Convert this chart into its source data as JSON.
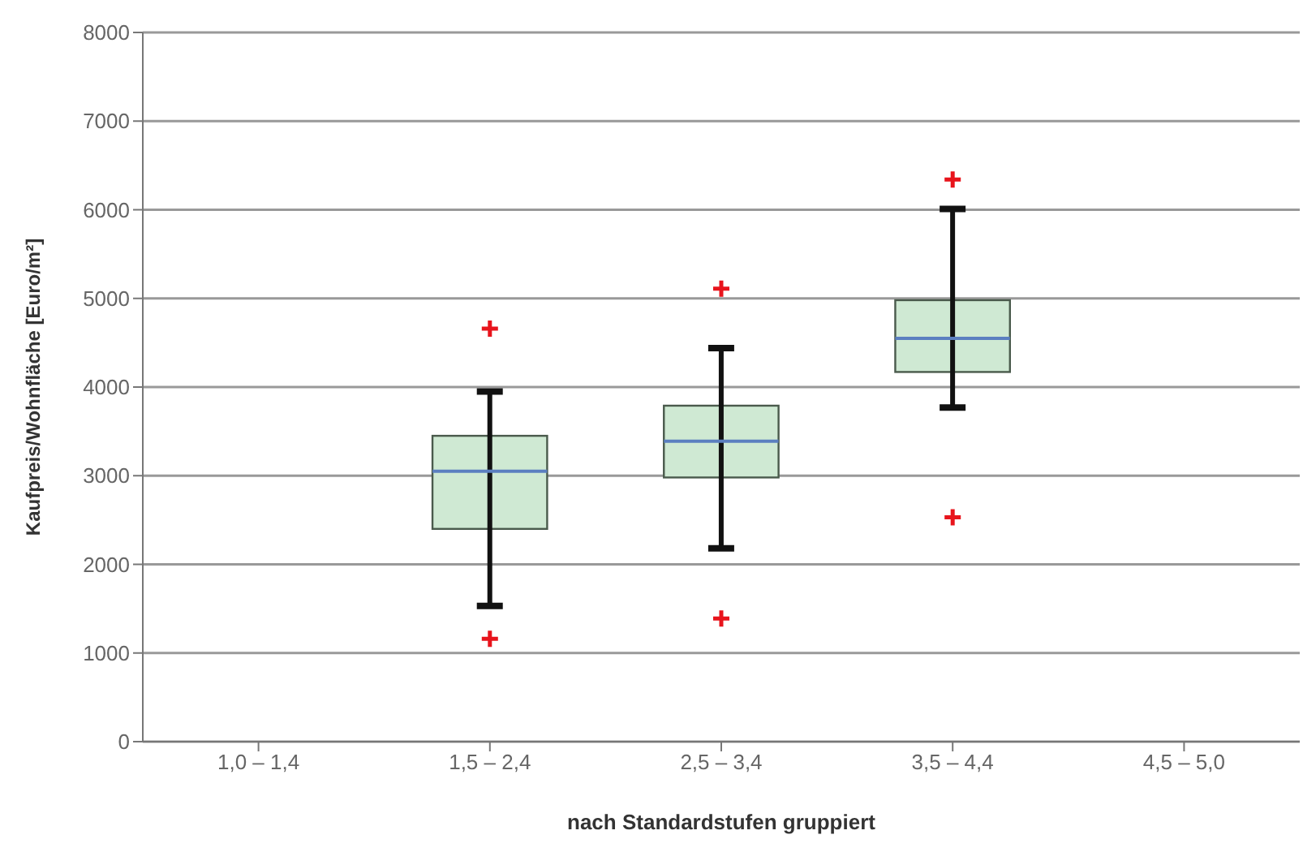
{
  "chart_data": {
    "type": "box",
    "xlabel": "nach Standardstufen gruppiert",
    "ylabel": "Kaufpreis/Wohnfläche [Euro/m²]",
    "categories": [
      "1,0 – 1,4",
      "1,5 – 2,4",
      "2,5 – 3,4",
      "3,5 – 4,4",
      "4,5 – 5,0"
    ],
    "series": [
      {
        "color": "#cfe9d3",
        "boxes": [
          null,
          {
            "low": 1530,
            "q1": 2400,
            "median": 3050,
            "q3": 3450,
            "high": 3950,
            "outliers": [
              4660,
              1160
            ]
          },
          {
            "low": 2180,
            "q1": 2980,
            "median": 3390,
            "q3": 3790,
            "high": 4440,
            "outliers": [
              5110,
              1390
            ]
          },
          {
            "low": 3770,
            "q1": 4170,
            "median": 4550,
            "q3": 4980,
            "high": 6010,
            "outliers": [
              6340,
              2530
            ]
          },
          null
        ]
      }
    ],
    "ylim": [
      0,
      8000
    ],
    "yticks": [
      0,
      1000,
      2000,
      3000,
      4000,
      5000,
      6000,
      7000,
      8000
    ],
    "grid": "y"
  }
}
